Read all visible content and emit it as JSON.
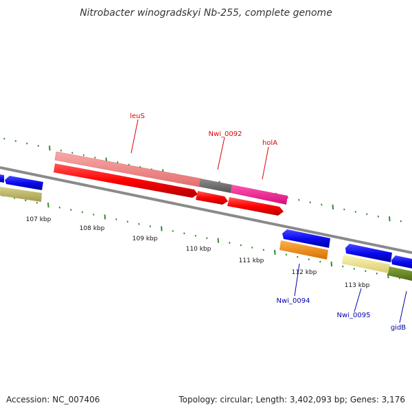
{
  "title": "Nitrobacter winogradskyi Nb-255, complete genome",
  "footer": {
    "accession": "Accession: NC_007406",
    "summary": "Topology: circular; Length: 3,402,093 bp; Genes: 3,176"
  },
  "scale": {
    "ticks": [
      "107 kbp",
      "108 kbp",
      "109 kbp",
      "110 kbp",
      "111 kbp",
      "112 kbp",
      "113 kbp"
    ]
  },
  "labels": {
    "leuS": "leuS",
    "nwi0092": "Nwi_0092",
    "holA": "holA",
    "nwi0094": "Nwi_0094",
    "nwi0095": "Nwi_0095",
    "gidB": "gidB"
  },
  "colors": {
    "backbone": "#8a8a8a",
    "tick_green": "#2e8b2e",
    "cds_red": "#ff0000",
    "cds_pink": "#f08080",
    "cds_grey": "#6f6f6f",
    "cds_magenta": "#ff1493",
    "cds_blue": "#1010ee",
    "cds_orange": "#ff8c00",
    "cds_olive": "#bdb76b",
    "cds_khaki": "#f0e68c",
    "cds_darkolive": "#6b8e23",
    "label_red": "#dd0000",
    "label_blue": "#0000aa"
  }
}
